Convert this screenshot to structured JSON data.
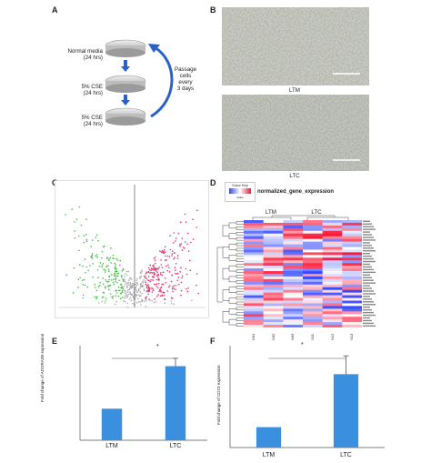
{
  "panels": {
    "a": {
      "letter": "A",
      "steps": [
        {
          "label": "Normal media",
          "duration": "(24 hrs)"
        },
        {
          "label": "5% CSE",
          "duration": "(24 hrs)"
        },
        {
          "label": "5% CSE",
          "duration": "(24 hrs)"
        }
      ],
      "passage_lines": [
        "Passage",
        "cells",
        "every",
        "3 days"
      ]
    },
    "b": {
      "letter": "B",
      "top_caption": "LTM",
      "bottom_caption": "LTC"
    },
    "c": {
      "letter": "C"
    },
    "d": {
      "letter": "D",
      "title": "normalized_gene_expression",
      "key_title": "Color Key",
      "key_label": "Value",
      "group_left": "LTM",
      "group_right": "LTC",
      "samples": [
        "N01",
        "N02",
        "N03",
        "N11",
        "N12",
        "N13"
      ]
    },
    "e": {
      "letter": "E",
      "ylabel": "Fold change of ADORA2B expression",
      "significance": "*"
    },
    "f": {
      "letter": "F",
      "ylabel": "Fold change of CD73 expression",
      "significance": "*"
    }
  },
  "chart_data": [
    {
      "type": "bar",
      "panel": "E",
      "categories": [
        "LTM",
        "LTC"
      ],
      "values": [
        1.0,
        2.35
      ],
      "errors": [
        0,
        0.25
      ],
      "ylim": [
        0,
        3
      ],
      "ylabel": "Fold change of ADORA2B expression",
      "bar_color": "#3a8fde"
    },
    {
      "type": "bar",
      "panel": "F",
      "categories": [
        "LTM",
        "LTC"
      ],
      "values": [
        1.0,
        3.6
      ],
      "errors": [
        0,
        0.9
      ],
      "ylim": [
        0,
        5
      ],
      "ylabel": "Fold change of CD73 expression",
      "bar_color": "#3a8fde"
    },
    {
      "type": "scatter",
      "panel": "C",
      "title": "volcano plot",
      "point_groups": [
        {
          "name": "down",
          "color": "#3fbf3f"
        },
        {
          "name": "none",
          "color": "#aaaaaa"
        },
        {
          "name": "up",
          "color": "#e0306a"
        }
      ]
    }
  ]
}
